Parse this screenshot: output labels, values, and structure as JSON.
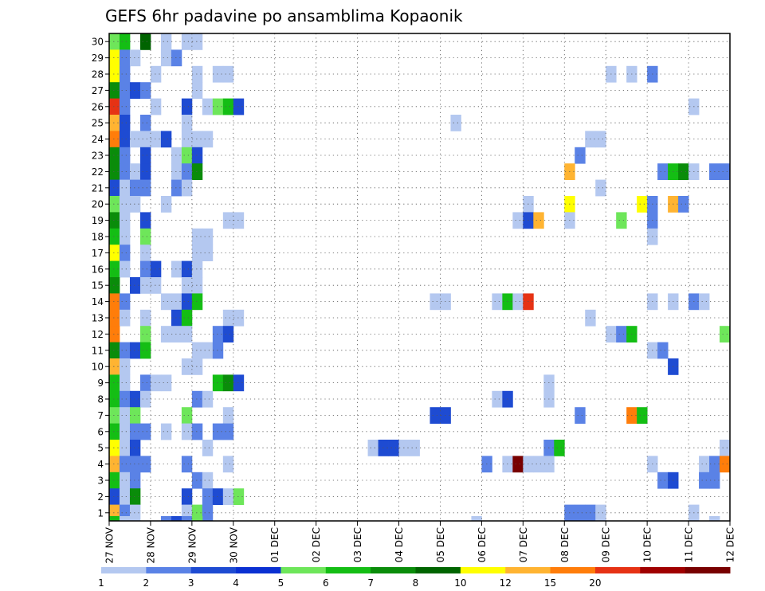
{
  "chart_data": {
    "type": "heatmap",
    "title": "GEFS 6hr padavine po ansamblima Kopaonik",
    "xlabel": "",
    "ylabel": "",
    "x_tick_labels": [
      "27 NOV",
      "28 NOV",
      "29 NOV",
      "30 NOV",
      "01 DEC",
      "02 DEC",
      "03 DEC",
      "04 DEC",
      "05 DEC",
      "06 DEC",
      "07 DEC",
      "08 DEC",
      "09 DEC",
      "10 DEC",
      "11 DEC",
      "12 DEC"
    ],
    "y_tick_labels": [
      "1",
      "2",
      "3",
      "4",
      "5",
      "6",
      "7",
      "8",
      "9",
      "10",
      "11",
      "12",
      "13",
      "14",
      "15",
      "16",
      "17",
      "18",
      "19",
      "20",
      "21",
      "22",
      "23",
      "24",
      "25",
      "26",
      "27",
      "28",
      "29",
      "30"
    ],
    "x_units": "6-hour steps starting 27 NOV 00Z",
    "xlim": [
      0,
      60
    ],
    "ylim": [
      0.5,
      30.5
    ],
    "grid": true,
    "colorbar": {
      "labels": [
        "1",
        "2",
        "3",
        "4",
        "5",
        "6",
        "7",
        "8",
        "10",
        "12",
        "15",
        "20"
      ],
      "colors": [
        "#b4c8f0",
        "#5a82e6",
        "#1e4bd2",
        "#0a30d2",
        "#6ee65a",
        "#14be14",
        "#0a8c0a",
        "#006400",
        "#ffff00",
        "#ffb432",
        "#ff7d0a",
        "#e63214",
        "#a00000",
        "#780000"
      ]
    },
    "cells": [
      {
        "m": 30,
        "s": 0,
        "c": 4
      },
      {
        "m": 30,
        "s": 1,
        "c": 5
      },
      {
        "m": 30,
        "s": 3,
        "c": 7
      },
      {
        "m": 30,
        "s": 5,
        "c": 0
      },
      {
        "m": 30,
        "s": 7,
        "c": 0
      },
      {
        "m": 30,
        "s": 8,
        "c": 0
      },
      {
        "m": 29,
        "s": 0,
        "c": 8
      },
      {
        "m": 29,
        "s": 1,
        "c": 1
      },
      {
        "m": 29,
        "s": 2,
        "c": 0
      },
      {
        "m": 29,
        "s": 5,
        "c": 0
      },
      {
        "m": 29,
        "s": 6,
        "c": 1
      },
      {
        "m": 28,
        "s": 0,
        "c": 8
      },
      {
        "m": 28,
        "s": 1,
        "c": 1
      },
      {
        "m": 28,
        "s": 4,
        "c": 0
      },
      {
        "m": 28,
        "s": 8,
        "c": 0
      },
      {
        "m": 28,
        "s": 10,
        "c": 0
      },
      {
        "m": 28,
        "s": 11,
        "c": 0
      },
      {
        "m": 28,
        "s": 48,
        "c": 0
      },
      {
        "m": 28,
        "s": 50,
        "c": 0
      },
      {
        "m": 28,
        "s": 52,
        "c": 1
      },
      {
        "m": 27,
        "s": 0,
        "c": 6
      },
      {
        "m": 27,
        "s": 1,
        "c": 1
      },
      {
        "m": 27,
        "s": 2,
        "c": 2
      },
      {
        "m": 27,
        "s": 3,
        "c": 1
      },
      {
        "m": 27,
        "s": 8,
        "c": 0
      },
      {
        "m": 26,
        "s": 0,
        "c": 11
      },
      {
        "m": 26,
        "s": 1,
        "c": 1
      },
      {
        "m": 26,
        "s": 4,
        "c": 0
      },
      {
        "m": 26,
        "s": 7,
        "c": 2
      },
      {
        "m": 26,
        "s": 9,
        "c": 0
      },
      {
        "m": 26,
        "s": 10,
        "c": 4
      },
      {
        "m": 26,
        "s": 11,
        "c": 5
      },
      {
        "m": 26,
        "s": 12,
        "c": 2
      },
      {
        "m": 26,
        "s": 56,
        "c": 0
      },
      {
        "m": 25,
        "s": 0,
        "c": 9
      },
      {
        "m": 25,
        "s": 1,
        "c": 2
      },
      {
        "m": 25,
        "s": 3,
        "c": 1
      },
      {
        "m": 25,
        "s": 7,
        "c": 0
      },
      {
        "m": 25,
        "s": 33,
        "c": 0
      },
      {
        "m": 24,
        "s": 0,
        "c": 10
      },
      {
        "m": 24,
        "s": 1,
        "c": 2
      },
      {
        "m": 24,
        "s": 2,
        "c": 0
      },
      {
        "m": 24,
        "s": 3,
        "c": 0
      },
      {
        "m": 24,
        "s": 4,
        "c": 0
      },
      {
        "m": 24,
        "s": 5,
        "c": 2
      },
      {
        "m": 24,
        "s": 7,
        "c": 0
      },
      {
        "m": 24,
        "s": 8,
        "c": 0
      },
      {
        "m": 24,
        "s": 9,
        "c": 0
      },
      {
        "m": 24,
        "s": 46,
        "c": 0
      },
      {
        "m": 24,
        "s": 47,
        "c": 0
      },
      {
        "m": 23,
        "s": 0,
        "c": 6
      },
      {
        "m": 23,
        "s": 1,
        "c": 1
      },
      {
        "m": 23,
        "s": 3,
        "c": 2
      },
      {
        "m": 23,
        "s": 6,
        "c": 0
      },
      {
        "m": 23,
        "s": 7,
        "c": 4
      },
      {
        "m": 23,
        "s": 8,
        "c": 2
      },
      {
        "m": 23,
        "s": 45,
        "c": 1
      },
      {
        "m": 22,
        "s": 0,
        "c": 6
      },
      {
        "m": 22,
        "s": 1,
        "c": 1
      },
      {
        "m": 22,
        "s": 2,
        "c": 0
      },
      {
        "m": 22,
        "s": 3,
        "c": 2
      },
      {
        "m": 22,
        "s": 6,
        "c": 0
      },
      {
        "m": 22,
        "s": 7,
        "c": 1
      },
      {
        "m": 22,
        "s": 8,
        "c": 6
      },
      {
        "m": 22,
        "s": 44,
        "c": 9
      },
      {
        "m": 22,
        "s": 53,
        "c": 1
      },
      {
        "m": 22,
        "s": 54,
        "c": 5
      },
      {
        "m": 22,
        "s": 55,
        "c": 6
      },
      {
        "m": 22,
        "s": 56,
        "c": 0
      },
      {
        "m": 22,
        "s": 58,
        "c": 1
      },
      {
        "m": 22,
        "s": 59,
        "c": 1
      },
      {
        "m": 21,
        "s": 0,
        "c": 2
      },
      {
        "m": 21,
        "s": 1,
        "c": 0
      },
      {
        "m": 21,
        "s": 2,
        "c": 1
      },
      {
        "m": 21,
        "s": 3,
        "c": 1
      },
      {
        "m": 21,
        "s": 6,
        "c": 1
      },
      {
        "m": 21,
        "s": 7,
        "c": 0
      },
      {
        "m": 21,
        "s": 47,
        "c": 0
      },
      {
        "m": 20,
        "s": 0,
        "c": 4
      },
      {
        "m": 20,
        "s": 1,
        "c": 0
      },
      {
        "m": 20,
        "s": 2,
        "c": 0
      },
      {
        "m": 20,
        "s": 5,
        "c": 0
      },
      {
        "m": 20,
        "s": 40,
        "c": 0
      },
      {
        "m": 20,
        "s": 44,
        "c": 8
      },
      {
        "m": 20,
        "s": 51,
        "c": 8
      },
      {
        "m": 20,
        "s": 52,
        "c": 1
      },
      {
        "m": 20,
        "s": 54,
        "c": 9
      },
      {
        "m": 20,
        "s": 55,
        "c": 1
      },
      {
        "m": 19,
        "s": 0,
        "c": 6
      },
      {
        "m": 19,
        "s": 1,
        "c": 0
      },
      {
        "m": 19,
        "s": 3,
        "c": 2
      },
      {
        "m": 19,
        "s": 11,
        "c": 0
      },
      {
        "m": 19,
        "s": 12,
        "c": 0
      },
      {
        "m": 19,
        "s": 39,
        "c": 0
      },
      {
        "m": 19,
        "s": 40,
        "c": 2
      },
      {
        "m": 19,
        "s": 41,
        "c": 9
      },
      {
        "m": 19,
        "s": 44,
        "c": 0
      },
      {
        "m": 19,
        "s": 49,
        "c": 4
      },
      {
        "m": 19,
        "s": 52,
        "c": 1
      },
      {
        "m": 18,
        "s": 0,
        "c": 5
      },
      {
        "m": 18,
        "s": 1,
        "c": 0
      },
      {
        "m": 18,
        "s": 3,
        "c": 4
      },
      {
        "m": 18,
        "s": 8,
        "c": 0
      },
      {
        "m": 18,
        "s": 9,
        "c": 0
      },
      {
        "m": 18,
        "s": 52,
        "c": 0
      },
      {
        "m": 17,
        "s": 0,
        "c": 8
      },
      {
        "m": 17,
        "s": 1,
        "c": 1
      },
      {
        "m": 17,
        "s": 3,
        "c": 0
      },
      {
        "m": 17,
        "s": 8,
        "c": 0
      },
      {
        "m": 17,
        "s": 9,
        "c": 0
      },
      {
        "m": 16,
        "s": 0,
        "c": 5
      },
      {
        "m": 16,
        "s": 1,
        "c": 0
      },
      {
        "m": 16,
        "s": 3,
        "c": 1
      },
      {
        "m": 16,
        "s": 4,
        "c": 2
      },
      {
        "m": 16,
        "s": 6,
        "c": 0
      },
      {
        "m": 16,
        "s": 7,
        "c": 2
      },
      {
        "m": 16,
        "s": 8,
        "c": 0
      },
      {
        "m": 15,
        "s": 0,
        "c": 6
      },
      {
        "m": 15,
        "s": 2,
        "c": 2
      },
      {
        "m": 15,
        "s": 3,
        "c": 0
      },
      {
        "m": 15,
        "s": 4,
        "c": 0
      },
      {
        "m": 15,
        "s": 7,
        "c": 0
      },
      {
        "m": 15,
        "s": 8,
        "c": 0
      },
      {
        "m": 14,
        "s": 0,
        "c": 10
      },
      {
        "m": 14,
        "s": 1,
        "c": 1
      },
      {
        "m": 14,
        "s": 5,
        "c": 0
      },
      {
        "m": 14,
        "s": 6,
        "c": 0
      },
      {
        "m": 14,
        "s": 7,
        "c": 2
      },
      {
        "m": 14,
        "s": 8,
        "c": 5
      },
      {
        "m": 14,
        "s": 31,
        "c": 0
      },
      {
        "m": 14,
        "s": 32,
        "c": 0
      },
      {
        "m": 14,
        "s": 37,
        "c": 0
      },
      {
        "m": 14,
        "s": 38,
        "c": 5
      },
      {
        "m": 14,
        "s": 39,
        "c": 0
      },
      {
        "m": 14,
        "s": 40,
        "c": 11
      },
      {
        "m": 14,
        "s": 52,
        "c": 0
      },
      {
        "m": 14,
        "s": 54,
        "c": 0
      },
      {
        "m": 14,
        "s": 56,
        "c": 1
      },
      {
        "m": 14,
        "s": 57,
        "c": 0
      },
      {
        "m": 13,
        "s": 0,
        "c": 10
      },
      {
        "m": 13,
        "s": 1,
        "c": 0
      },
      {
        "m": 13,
        "s": 3,
        "c": 0
      },
      {
        "m": 13,
        "s": 6,
        "c": 2
      },
      {
        "m": 13,
        "s": 7,
        "c": 5
      },
      {
        "m": 13,
        "s": 11,
        "c": 0
      },
      {
        "m": 13,
        "s": 12,
        "c": 0
      },
      {
        "m": 13,
        "s": 46,
        "c": 0
      },
      {
        "m": 12,
        "s": 0,
        "c": 10
      },
      {
        "m": 12,
        "s": 3,
        "c": 4
      },
      {
        "m": 12,
        "s": 10,
        "c": 1
      },
      {
        "m": 12,
        "s": 11,
        "c": 2
      },
      {
        "m": 12,
        "s": 5,
        "c": 0
      },
      {
        "m": 12,
        "s": 6,
        "c": 0
      },
      {
        "m": 12,
        "s": 7,
        "c": 0
      },
      {
        "m": 12,
        "s": 48,
        "c": 0
      },
      {
        "m": 12,
        "s": 49,
        "c": 1
      },
      {
        "m": 12,
        "s": 50,
        "c": 5
      },
      {
        "m": 12,
        "s": 59,
        "c": 4
      },
      {
        "m": 11,
        "s": 0,
        "c": 6
      },
      {
        "m": 11,
        "s": 1,
        "c": 1
      },
      {
        "m": 11,
        "s": 2,
        "c": 2
      },
      {
        "m": 11,
        "s": 3,
        "c": 5
      },
      {
        "m": 11,
        "s": 8,
        "c": 0
      },
      {
        "m": 11,
        "s": 9,
        "c": 0
      },
      {
        "m": 11,
        "s": 10,
        "c": 1
      },
      {
        "m": 11,
        "s": 52,
        "c": 0
      },
      {
        "m": 11,
        "s": 53,
        "c": 1
      },
      {
        "m": 10,
        "s": 0,
        "c": 9
      },
      {
        "m": 10,
        "s": 1,
        "c": 0
      },
      {
        "m": 10,
        "s": 7,
        "c": 0
      },
      {
        "m": 10,
        "s": 8,
        "c": 0
      },
      {
        "m": 10,
        "s": 54,
        "c": 2
      },
      {
        "m": 9,
        "s": 0,
        "c": 5
      },
      {
        "m": 9,
        "s": 1,
        "c": 0
      },
      {
        "m": 9,
        "s": 3,
        "c": 1
      },
      {
        "m": 9,
        "s": 4,
        "c": 0
      },
      {
        "m": 9,
        "s": 5,
        "c": 0
      },
      {
        "m": 9,
        "s": 10,
        "c": 5
      },
      {
        "m": 9,
        "s": 11,
        "c": 6
      },
      {
        "m": 9,
        "s": 12,
        "c": 2
      },
      {
        "m": 9,
        "s": 42,
        "c": 0
      },
      {
        "m": 8,
        "s": 0,
        "c": 5
      },
      {
        "m": 8,
        "s": 1,
        "c": 1
      },
      {
        "m": 8,
        "s": 2,
        "c": 2
      },
      {
        "m": 8,
        "s": 3,
        "c": 0
      },
      {
        "m": 8,
        "s": 8,
        "c": 1
      },
      {
        "m": 8,
        "s": 9,
        "c": 0
      },
      {
        "m": 8,
        "s": 37,
        "c": 0
      },
      {
        "m": 8,
        "s": 38,
        "c": 2
      },
      {
        "m": 8,
        "s": 42,
        "c": 0
      },
      {
        "m": 7,
        "s": 0,
        "c": 4
      },
      {
        "m": 7,
        "s": 1,
        "c": 0
      },
      {
        "m": 7,
        "s": 2,
        "c": 4
      },
      {
        "m": 7,
        "s": 7,
        "c": 4
      },
      {
        "m": 7,
        "s": 11,
        "c": 0
      },
      {
        "m": 7,
        "s": 31,
        "c": 2
      },
      {
        "m": 7,
        "s": 32,
        "c": 2
      },
      {
        "m": 7,
        "s": 45,
        "c": 1
      },
      {
        "m": 7,
        "s": 50,
        "c": 10
      },
      {
        "m": 7,
        "s": 51,
        "c": 5
      },
      {
        "m": 6,
        "s": 0,
        "c": 5
      },
      {
        "m": 6,
        "s": 1,
        "c": 0
      },
      {
        "m": 6,
        "s": 2,
        "c": 1
      },
      {
        "m": 6,
        "s": 3,
        "c": 1
      },
      {
        "m": 6,
        "s": 5,
        "c": 0
      },
      {
        "m": 6,
        "s": 7,
        "c": 0
      },
      {
        "m": 6,
        "s": 8,
        "c": 1
      },
      {
        "m": 6,
        "s": 10,
        "c": 1
      },
      {
        "m": 6,
        "s": 11,
        "c": 1
      },
      {
        "m": 5,
        "s": 0,
        "c": 8
      },
      {
        "m": 5,
        "s": 1,
        "c": 0
      },
      {
        "m": 5,
        "s": 2,
        "c": 2
      },
      {
        "m": 5,
        "s": 9,
        "c": 0
      },
      {
        "m": 5,
        "s": 25,
        "c": 0
      },
      {
        "m": 5,
        "s": 26,
        "c": 2
      },
      {
        "m": 5,
        "s": 27,
        "c": 2
      },
      {
        "m": 5,
        "s": 28,
        "c": 0
      },
      {
        "m": 5,
        "s": 29,
        "c": 0
      },
      {
        "m": 5,
        "s": 42,
        "c": 1
      },
      {
        "m": 5,
        "s": 43,
        "c": 5
      },
      {
        "m": 5,
        "s": 59,
        "c": 0
      },
      {
        "m": 4,
        "s": 0,
        "c": 9
      },
      {
        "m": 4,
        "s": 1,
        "c": 1
      },
      {
        "m": 4,
        "s": 2,
        "c": 1
      },
      {
        "m": 4,
        "s": 3,
        "c": 1
      },
      {
        "m": 4,
        "s": 7,
        "c": 1
      },
      {
        "m": 4,
        "s": 11,
        "c": 0
      },
      {
        "m": 4,
        "s": 36,
        "c": 1
      },
      {
        "m": 4,
        "s": 38,
        "c": 0
      },
      {
        "m": 4,
        "s": 39,
        "c": 13
      },
      {
        "m": 4,
        "s": 40,
        "c": 0
      },
      {
        "m": 4,
        "s": 41,
        "c": 0
      },
      {
        "m": 4,
        "s": 42,
        "c": 0
      },
      {
        "m": 4,
        "s": 52,
        "c": 0
      },
      {
        "m": 4,
        "s": 57,
        "c": 0
      },
      {
        "m": 4,
        "s": 58,
        "c": 1
      },
      {
        "m": 4,
        "s": 59,
        "c": 10
      },
      {
        "m": 3,
        "s": 0,
        "c": 5
      },
      {
        "m": 3,
        "s": 1,
        "c": 0
      },
      {
        "m": 3,
        "s": 2,
        "c": 1
      },
      {
        "m": 3,
        "s": 8,
        "c": 1
      },
      {
        "m": 3,
        "s": 9,
        "c": 0
      },
      {
        "m": 3,
        "s": 53,
        "c": 1
      },
      {
        "m": 3,
        "s": 54,
        "c": 2
      },
      {
        "m": 3,
        "s": 57,
        "c": 1
      },
      {
        "m": 3,
        "s": 58,
        "c": 1
      },
      {
        "m": 2,
        "s": 0,
        "c": 2
      },
      {
        "m": 2,
        "s": 1,
        "c": 0
      },
      {
        "m": 2,
        "s": 2,
        "c": 6
      },
      {
        "m": 2,
        "s": 7,
        "c": 2
      },
      {
        "m": 2,
        "s": 9,
        "c": 1
      },
      {
        "m": 2,
        "s": 10,
        "c": 2
      },
      {
        "m": 2,
        "s": 11,
        "c": 0
      },
      {
        "m": 2,
        "s": 12,
        "c": 4
      },
      {
        "m": 1,
        "s": 0,
        "c": 9
      },
      {
        "m": 1,
        "s": 1,
        "c": 1
      },
      {
        "m": 1,
        "s": 2,
        "c": 0
      },
      {
        "m": 1,
        "s": 7,
        "c": 0
      },
      {
        "m": 1,
        "s": 8,
        "c": 4
      },
      {
        "m": 1,
        "s": 9,
        "c": 1
      },
      {
        "m": 1,
        "s": 44,
        "c": 1
      },
      {
        "m": 1,
        "s": 45,
        "c": 1
      },
      {
        "m": 1,
        "s": 46,
        "c": 1
      },
      {
        "m": 1,
        "s": 47,
        "c": 0
      },
      {
        "m": 1,
        "s": 56,
        "c": 0
      },
      {
        "m": 0,
        "s": 0,
        "c": 5
      },
      {
        "m": 0,
        "s": 1,
        "c": 0
      },
      {
        "m": 0,
        "s": 5,
        "c": 1
      },
      {
        "m": 0,
        "s": 6,
        "c": 2
      },
      {
        "m": 0,
        "s": 7,
        "c": 1
      },
      {
        "m": 0,
        "s": 8,
        "c": 4
      },
      {
        "m": 0,
        "s": 35,
        "c": 0
      },
      {
        "m": 0,
        "s": 58,
        "c": 0
      }
    ]
  }
}
